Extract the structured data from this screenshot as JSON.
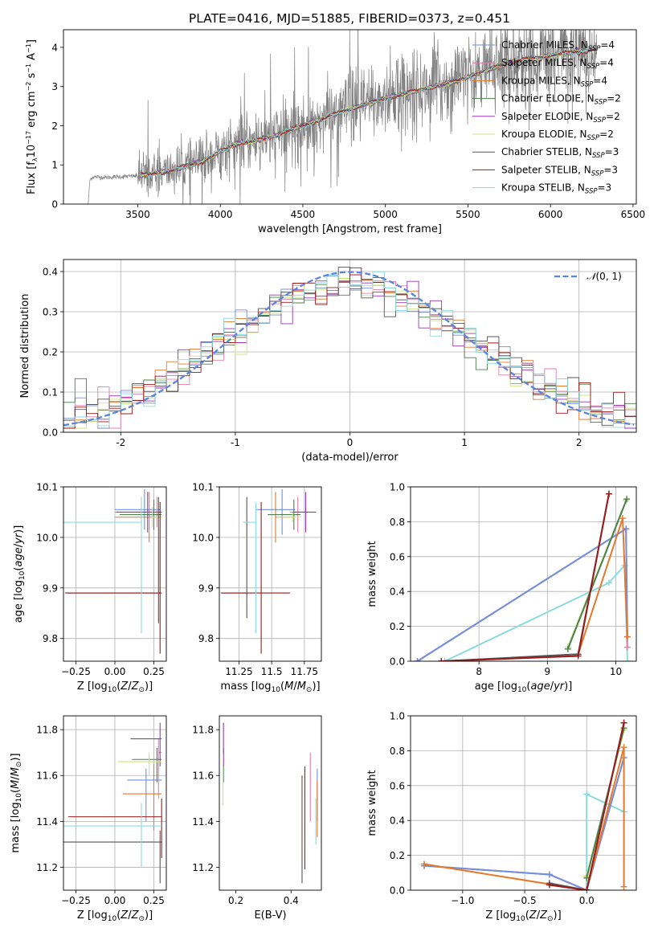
{
  "figure": {
    "title": "PLATE=0416, MJD=51885, FIBERID=0373, z=0.451"
  },
  "models": [
    {
      "name": "Chabrier MILES",
      "nssp": "4",
      "color": "#6f8fe0"
    },
    {
      "name": "Salpeter MILES",
      "nssp": "4",
      "color": "#e47fa8"
    },
    {
      "name": "Kroupa MILES",
      "nssp": "4",
      "color": "#e6782a"
    },
    {
      "name": "Chabrier ELODIE",
      "nssp": "2",
      "color": "#4b7f4b"
    },
    {
      "name": "Salpeter ELODIE",
      "nssp": "2",
      "color": "#9b35b8"
    },
    {
      "name": "Kroupa ELODIE",
      "nssp": "2",
      "color": "#c8e87a"
    },
    {
      "name": "Chabrier STELIB",
      "nssp": "3",
      "color": "#555555"
    },
    {
      "name": "Salpeter STELIB",
      "nssp": "3",
      "color": "#9b1b1b"
    },
    {
      "name": "Kroupa STELIB",
      "nssp": "3",
      "color": "#8adbe0"
    }
  ],
  "chart_data": [
    {
      "id": "spectrum",
      "type": "line",
      "xlabel": "wavelength [Angstrom, rest frame]",
      "ylabel_html": "Flux [f<tspan dy='3' font-size='8'>λ</tspan><tspan dy='-3'>10</tspan><tspan dy='-5' font-size='8'>−17</tspan><tspan dy='5'> erg cm</tspan><tspan dy='-5' font-size='8'>−2</tspan><tspan dy='5'> s</tspan><tspan dy='-5' font-size='8'>−1</tspan><tspan dy='5'> A</tspan><tspan dy='-5' font-size='8'>−1</tspan><tspan dy='5'>]</tspan>",
      "xlim": [
        3050,
        6520
      ],
      "ylim": [
        0,
        4.45
      ],
      "xticks": [
        3500,
        4000,
        4500,
        5000,
        5500,
        6000,
        6500
      ],
      "yticks": [
        0,
        1,
        2,
        3,
        4
      ],
      "grid": false,
      "legend": "top-right",
      "continuum": [
        [
          3200,
          0.0
        ],
        [
          3210,
          0.62
        ],
        [
          3230,
          0.7
        ],
        [
          3300,
          0.68
        ],
        [
          3400,
          0.7
        ],
        [
          3500,
          0.72
        ],
        [
          3600,
          0.78
        ],
        [
          3700,
          0.85
        ],
        [
          3800,
          0.98
        ],
        [
          3900,
          1.1
        ],
        [
          4000,
          1.35
        ],
        [
          4100,
          1.55
        ],
        [
          4200,
          1.6
        ],
        [
          4300,
          1.7
        ],
        [
          4400,
          1.85
        ],
        [
          4500,
          2.0
        ],
        [
          4600,
          2.15
        ],
        [
          4700,
          2.3
        ],
        [
          4800,
          2.45
        ],
        [
          4900,
          2.55
        ],
        [
          5000,
          2.7
        ],
        [
          5100,
          2.8
        ],
        [
          5200,
          2.9
        ],
        [
          5300,
          3.0
        ],
        [
          5400,
          3.1
        ],
        [
          5500,
          3.25
        ],
        [
          5600,
          3.4
        ],
        [
          5700,
          3.55
        ],
        [
          5800,
          3.65
        ],
        [
          5900,
          3.72
        ],
        [
          6000,
          3.8
        ],
        [
          6100,
          3.85
        ],
        [
          6200,
          3.9
        ],
        [
          6280,
          3.95
        ]
      ],
      "data_wavelength_range": [
        3200,
        6280
      ],
      "model_wavelength_range": [
        3510,
        6280
      ]
    },
    {
      "id": "residuals",
      "type": "line",
      "xlabel": "(data-model)/error",
      "ylabel": "Normed distribution",
      "xlim": [
        -2.5,
        2.5
      ],
      "ylim": [
        0,
        0.43
      ],
      "xticks": [
        -2,
        -1,
        0,
        1,
        2
      ],
      "yticks": [
        0.0,
        0.1,
        0.2,
        0.3,
        0.4
      ],
      "grid": true,
      "legend": "top-right",
      "gaussian_label": "N(0, 1)",
      "gaussian": {
        "mean": 0,
        "sigma": 1,
        "color": "#5b84e0"
      },
      "bin_width": 0.1
    },
    {
      "id": "age-Z",
      "type": "scatter",
      "xlabel_html": "Z [log<tspan dy='3' font-size='9'>10</tspan><tspan dy='-3'>(</tspan><tspan font-style='italic'>Z</tspan>/<tspan font-style='italic'>Z</tspan><tspan dy='3' font-size='9'>⊙</tspan><tspan dy='-3'>)]</tspan>",
      "ylabel_html": "age  [log<tspan dy='3' font-size='9'>10</tspan><tspan dy='-3'>(</tspan><tspan font-style='italic'>age</tspan>/<tspan font-style='italic'>yr</tspan>)]",
      "xlim": [
        -0.33,
        0.33
      ],
      "ylim": [
        9.755,
        10.1
      ],
      "xticks": [
        -0.25,
        0.0,
        0.25
      ],
      "xtick_labels": [
        "−0.25",
        "0.00",
        "0.25"
      ],
      "yticks": [
        9.8,
        9.9,
        10.0,
        10.1
      ],
      "grid": true,
      "bars": [
        {
          "m": 0,
          "x": 0.19,
          "y": 10.055,
          "xerr": [
            0.19,
            0.1
          ],
          "yerr": [
            0.04,
            0.04
          ]
        },
        {
          "m": 1,
          "x": 0.27,
          "y": 10.05,
          "xerr": [
            0.27,
            0.03
          ],
          "yerr": [
            0.03,
            0.03
          ]
        },
        {
          "m": 2,
          "x": 0.22,
          "y": 10.04,
          "xerr": [
            0.22,
            0.08
          ],
          "yerr": [
            0.05,
            0.05
          ]
        },
        {
          "m": 3,
          "x": 0.25,
          "y": 10.045,
          "xerr": [
            0.22,
            0.05
          ],
          "yerr": [
            0.03,
            0.03
          ]
        },
        {
          "m": 4,
          "x": 0.21,
          "y": 10.05,
          "xerr": [
            0.2,
            0.09
          ],
          "yerr": [
            0.04,
            0.04
          ]
        },
        {
          "m": 5,
          "x": 0.24,
          "y": 10.04,
          "xerr": [
            0.0,
            0.06
          ],
          "yerr": [
            0.02,
            0.02
          ]
        },
        {
          "m": 6,
          "x": 0.28,
          "y": 9.89,
          "xerr": [
            0.6,
            0.02
          ],
          "yerr": [
            0.06,
            0.19
          ]
        },
        {
          "m": 7,
          "x": 0.29,
          "y": 9.89,
          "xerr": [
            0.6,
            0.01
          ],
          "yerr": [
            0.12,
            0.18
          ]
        },
        {
          "m": 8,
          "x": 0.17,
          "y": 10.03,
          "xerr": [
            0.5,
            0.0
          ],
          "yerr": [
            0.22,
            0.05
          ]
        }
      ]
    },
    {
      "id": "age-mass",
      "type": "scatter",
      "xlabel_html": "mass [log<tspan dy='3' font-size='9'>10</tspan><tspan dy='-3'>(</tspan><tspan font-style='italic'>M</tspan>/<tspan font-style='italic'>M</tspan><tspan dy='3' font-size='9'>⊙</tspan><tspan dy='-3'>)]</tspan>",
      "xlim": [
        11.1,
        11.88
      ],
      "ylim": [
        9.755,
        10.1
      ],
      "xticks": [
        11.25,
        11.5,
        11.75
      ],
      "yticks": [
        9.8,
        9.9,
        10.0,
        10.1
      ],
      "grid": true,
      "bars": [
        {
          "m": 0,
          "x": 11.58,
          "y": 10.055,
          "xerr": [
            0.2,
            0.1
          ],
          "yerr": [
            0.05,
            0.04
          ]
        },
        {
          "m": 1,
          "x": 11.7,
          "y": 10.05,
          "xerr": [
            0.06,
            0.06
          ],
          "yerr": [
            0.04,
            0.03
          ]
        },
        {
          "m": 2,
          "x": 11.53,
          "y": 10.04,
          "xerr": [
            0.0,
            0.13
          ],
          "yerr": [
            0.05,
            0.05
          ]
        },
        {
          "m": 3,
          "x": 11.67,
          "y": 10.045,
          "xerr": [
            0.2,
            0.05
          ],
          "yerr": [
            0.03,
            0.03
          ]
        },
        {
          "m": 4,
          "x": 11.76,
          "y": 10.05,
          "xerr": [
            0.1,
            0.08
          ],
          "yerr": [
            0.04,
            0.04
          ]
        },
        {
          "m": 5,
          "x": 11.66,
          "y": 10.04,
          "xerr": [
            0.12,
            0.06
          ],
          "yerr": [
            0.01,
            0.01
          ]
        },
        {
          "m": 6,
          "x": 11.31,
          "y": 9.89,
          "xerr": [
            0.2,
            0.0
          ],
          "yerr": [
            0.05,
            0.19
          ]
        },
        {
          "m": 7,
          "x": 11.42,
          "y": 9.89,
          "xerr": [
            0.3,
            0.22
          ],
          "yerr": [
            0.12,
            0.18
          ]
        },
        {
          "m": 8,
          "x": 11.38,
          "y": 10.03,
          "xerr": [
            0.1,
            0.0
          ],
          "yerr": [
            0.22,
            0.04
          ]
        }
      ]
    },
    {
      "id": "weight-age",
      "type": "line",
      "xlabel_html": "age  [log<tspan dy='3' font-size='9'>10</tspan><tspan dy='-3'>(</tspan><tspan font-style='italic'>age</tspan>/<tspan font-style='italic'>yr</tspan>)]",
      "ylabel": "mass weight",
      "xlim": [
        7.0,
        10.3
      ],
      "ylim": [
        0,
        1.0
      ],
      "xticks": [
        8,
        9,
        10
      ],
      "yticks": [
        0.0,
        0.2,
        0.4,
        0.6,
        0.8,
        1.0
      ],
      "grid": true,
      "series": [
        {
          "m": 8,
          "x": [
            7.5,
            9.9,
            10.13,
            10.17
          ],
          "y": [
            0.0,
            0.45,
            0.55,
            0.0
          ]
        },
        {
          "m": 1,
          "x": [
            7.1,
            10.15,
            10.17
          ],
          "y": [
            0.0,
            0.76,
            0.08
          ]
        },
        {
          "m": 0,
          "x": [
            7.1,
            10.15,
            10.17
          ],
          "y": [
            0.0,
            0.76,
            0.14
          ]
        },
        {
          "m": 5,
          "x": [
            9.3,
            10.15
          ],
          "y": [
            0.08,
            0.92
          ]
        },
        {
          "m": 3,
          "x": [
            9.3,
            10.16
          ],
          "y": [
            0.07,
            0.93
          ]
        },
        {
          "m": 2,
          "x": [
            9.45,
            10.1,
            10.17
          ],
          "y": [
            0.04,
            0.82,
            0.14
          ]
        },
        {
          "m": 6,
          "x": [
            7.45,
            9.45,
            9.9
          ],
          "y": [
            0.0,
            0.04,
            0.96
          ]
        },
        {
          "m": 7,
          "x": [
            7.45,
            9.45,
            9.9
          ],
          "y": [
            0.0,
            0.03,
            0.96
          ]
        }
      ]
    },
    {
      "id": "mass-Z",
      "type": "scatter",
      "xlabel_html": "Z [log<tspan dy='3' font-size='9'>10</tspan><tspan dy='-3'>(</tspan><tspan font-style='italic'>Z</tspan>/<tspan font-style='italic'>Z</tspan><tspan dy='3' font-size='9'>⊙</tspan><tspan dy='-3'>)]</tspan>",
      "ylabel_html": "mass [log<tspan dy='3' font-size='9'>10</tspan><tspan dy='-3'>(</tspan><tspan font-style='italic'>M</tspan>/<tspan font-style='italic'>M</tspan><tspan dy='3' font-size='9'>⊙</tspan><tspan dy='-3'>)]</tspan>",
      "xlim": [
        -0.33,
        0.33
      ],
      "ylim": [
        11.1,
        11.86
      ],
      "xticks": [
        -0.25,
        0.0,
        0.25
      ],
      "xtick_labels": [
        "−0.25",
        "0.00",
        "0.25"
      ],
      "yticks": [
        11.2,
        11.4,
        11.6,
        11.8
      ],
      "grid": true,
      "bars": [
        {
          "m": 0,
          "x": 0.2,
          "y": 11.58,
          "xerr": [
            0.12,
            0.1
          ],
          "yerr": [
            0.18,
            0.05
          ]
        },
        {
          "m": 1,
          "x": 0.28,
          "y": 11.7,
          "xerr": [
            0.0,
            0.02
          ],
          "yerr": [
            0.2,
            0.06
          ]
        },
        {
          "m": 2,
          "x": 0.25,
          "y": 11.52,
          "xerr": [
            0.2,
            0.05
          ],
          "yerr": [
            0.16,
            0.13
          ]
        },
        {
          "m": 3,
          "x": 0.27,
          "y": 11.67,
          "xerr": [
            0.16,
            0.03
          ],
          "yerr": [
            0.1,
            0.05
          ]
        },
        {
          "m": 4,
          "x": 0.29,
          "y": 11.76,
          "xerr": [
            0.19,
            0.01
          ],
          "yerr": [
            0.12,
            0.07
          ]
        },
        {
          "m": 5,
          "x": 0.22,
          "y": 11.66,
          "xerr": [
            0.2,
            0.08
          ],
          "yerr": [
            0.06,
            0.04
          ]
        },
        {
          "m": 6,
          "x": 0.29,
          "y": 11.31,
          "xerr": [
            0.62,
            0.01
          ],
          "yerr": [
            0.18,
            0.05
          ]
        },
        {
          "m": 7,
          "x": 0.3,
          "y": 11.42,
          "xerr": [
            0.6,
            0.0
          ],
          "yerr": [
            0.18,
            0.08
          ]
        },
        {
          "m": 8,
          "x": 0.17,
          "y": 11.38,
          "xerr": [
            0.5,
            0.13
          ],
          "yerr": [
            0.18,
            0.1
          ]
        }
      ]
    },
    {
      "id": "mass-ebv",
      "type": "scatter",
      "xlabel": "E(B-V)",
      "xlim": [
        0.14,
        0.51
      ],
      "ylim": [
        11.1,
        11.86
      ],
      "xticks": [
        0.2,
        0.4
      ],
      "yticks": [
        11.2,
        11.4,
        11.6,
        11.8
      ],
      "grid": false,
      "bars": [
        {
          "m": 0,
          "x": 0.495,
          "y": 11.58,
          "yerr": [
            0.18,
            0.05
          ]
        },
        {
          "m": 1,
          "x": 0.47,
          "y": 11.6,
          "yerr": [
            0.2,
            0.1
          ]
        },
        {
          "m": 2,
          "x": 0.495,
          "y": 11.45,
          "yerr": [
            0.12,
            0.13
          ]
        },
        {
          "m": 3,
          "x": 0.155,
          "y": 11.67,
          "yerr": [
            0.1,
            0.05
          ]
        },
        {
          "m": 4,
          "x": 0.155,
          "y": 11.76,
          "yerr": [
            0.12,
            0.07
          ]
        },
        {
          "m": 5,
          "x": 0.153,
          "y": 11.62,
          "yerr": [
            0.15,
            0.08
          ]
        },
        {
          "m": 6,
          "x": 0.44,
          "y": 11.35,
          "yerr": [
            0.22,
            0.25
          ]
        },
        {
          "m": 7,
          "x": 0.45,
          "y": 11.42,
          "yerr": [
            0.23,
            0.22
          ]
        },
        {
          "m": 8,
          "x": 0.49,
          "y": 11.4,
          "yerr": [
            0.1,
            0.1
          ]
        }
      ]
    },
    {
      "id": "weight-Z",
      "type": "line",
      "xlabel_html": "Z [log<tspan dy='3' font-size='9'>10</tspan><tspan dy='-3'>(</tspan><tspan font-style='italic'>Z</tspan>/<tspan font-style='italic'>Z</tspan><tspan dy='3' font-size='9'>⊙</tspan><tspan dy='-3'>)]</tspan>",
      "ylabel": "mass weight",
      "xlim": [
        -1.42,
        0.4
      ],
      "ylim": [
        0,
        1.0
      ],
      "xticks": [
        -1.0,
        -0.5,
        0.0
      ],
      "xtick_labels": [
        "−1.0",
        "−0.5",
        "0.0"
      ],
      "yticks": [
        0.0,
        0.2,
        0.4,
        0.6,
        0.8,
        1.0
      ],
      "grid": true,
      "series": [
        {
          "m": 8,
          "x": [
            0.0,
            0.0,
            0.3
          ],
          "y": [
            0.0,
            0.55,
            0.45
          ]
        },
        {
          "m": 1,
          "x": [
            -1.31,
            -0.3,
            0.0,
            0.3
          ],
          "y": [
            0.14,
            0.09,
            0.0,
            0.76
          ]
        },
        {
          "m": 0,
          "x": [
            -1.31,
            -0.3,
            0.0,
            0.3
          ],
          "y": [
            0.14,
            0.09,
            0.0,
            0.76
          ]
        },
        {
          "m": 5,
          "x": [
            0.0,
            0.3
          ],
          "y": [
            0.08,
            0.92
          ]
        },
        {
          "m": 3,
          "x": [
            0.0,
            0.3
          ],
          "y": [
            0.07,
            0.93
          ]
        },
        {
          "m": 2,
          "x": [
            -1.31,
            0.0,
            0.3,
            0.3
          ],
          "y": [
            0.15,
            0.0,
            0.82,
            0.02
          ]
        },
        {
          "m": 6,
          "x": [
            -0.3,
            0.0,
            0.3
          ],
          "y": [
            0.04,
            0.0,
            0.96
          ]
        },
        {
          "m": 7,
          "x": [
            -0.3,
            0.0,
            0.3
          ],
          "y": [
            0.03,
            0.0,
            0.96
          ]
        }
      ]
    }
  ]
}
